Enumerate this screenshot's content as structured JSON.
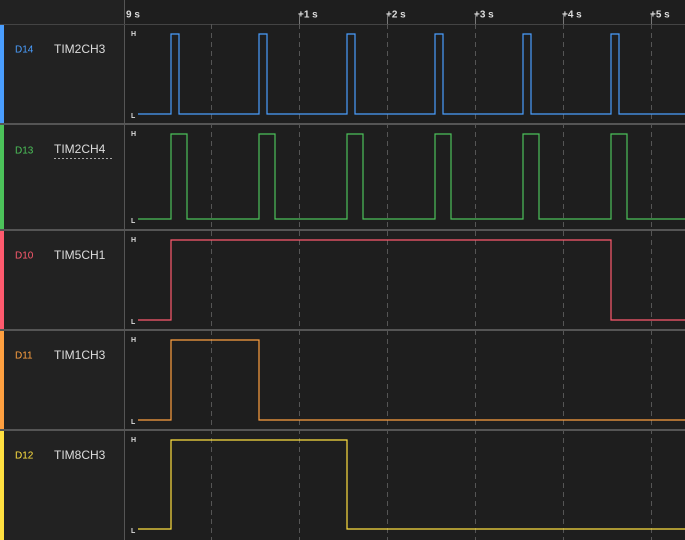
{
  "timeline": {
    "ticks": [
      "9 s",
      "+1 s",
      "+2 s",
      "+3 s",
      "+4 s",
      "+5 s"
    ]
  },
  "levels": {
    "high": "H",
    "low": "L"
  },
  "channels": [
    {
      "id": "D14",
      "name": "TIM2CH3"
    },
    {
      "id": "D13",
      "name": "TIM2CH4"
    },
    {
      "id": "D10",
      "name": "TIM5CH1"
    },
    {
      "id": "D11",
      "name": "TIM1CH3"
    },
    {
      "id": "D12",
      "name": "TIM8CH3"
    }
  ]
}
